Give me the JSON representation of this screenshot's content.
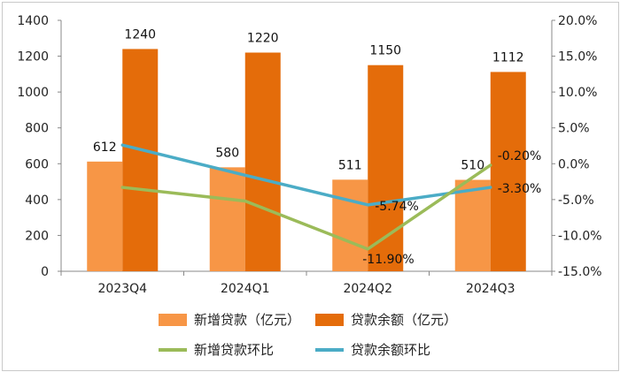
{
  "chart_data": {
    "type": "bar+line",
    "title": "",
    "categories": [
      "2023Q4",
      "2024Q1",
      "2024Q2",
      "2024Q3"
    ],
    "bar_series": [
      {
        "name": "新增贷款（亿元）",
        "values": [
          612,
          580,
          511,
          510
        ],
        "color": "#F79646",
        "labels": [
          "612",
          "580",
          "511",
          "510"
        ]
      },
      {
        "name": "贷款余额（亿元）",
        "values": [
          1240,
          1220,
          1150,
          1112
        ],
        "color": "#E46C0A",
        "labels": [
          "1240",
          "1220",
          "1150",
          "1112"
        ]
      }
    ],
    "line_series": [
      {
        "name": "新增贷款环比",
        "values": [
          -3.3,
          -5.2,
          -11.9,
          -0.2
        ],
        "color": "#9BBB59",
        "labels": [
          "",
          "",
          "-11.90%",
          "-0.20%"
        ]
      },
      {
        "name": "贷款余额环比",
        "values": [
          2.6,
          -1.6,
          -5.74,
          -3.3
        ],
        "color": "#4BACC6",
        "labels": [
          "",
          "",
          "-5.74%",
          "-3.30%"
        ]
      }
    ],
    "y_left": {
      "min": 0,
      "max": 1400,
      "step": 200,
      "ticks": [
        "0",
        "200",
        "400",
        "600",
        "800",
        "1000",
        "1200",
        "1400"
      ]
    },
    "y_right": {
      "min": -15,
      "max": 20,
      "step": 5,
      "ticks": [
        "-15.0%",
        "-10.0%",
        "-5.0%",
        "0.0%",
        "5.0%",
        "10.0%",
        "15.0%",
        "20.0%"
      ]
    },
    "legend_position": "bottom"
  }
}
